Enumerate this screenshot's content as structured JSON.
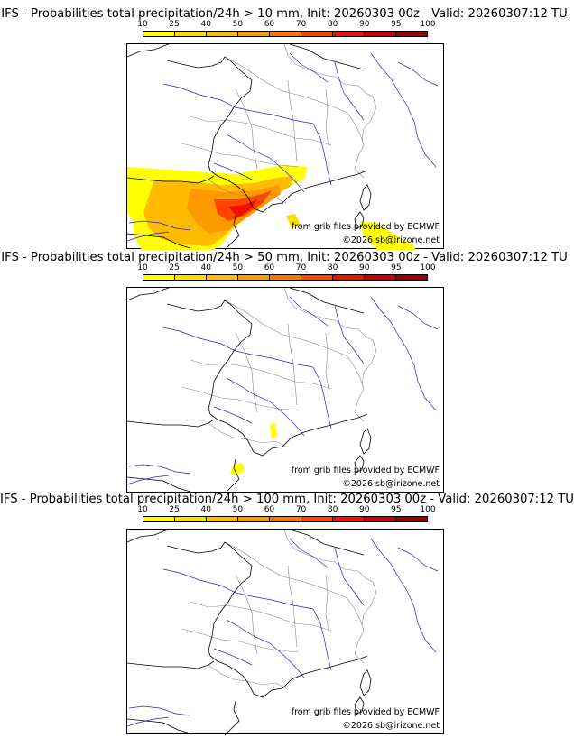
{
  "panels": [
    {
      "title": "IFS - Probabilities total precipitation/24h > 10 mm, Init: 20260303 00z - Valid: 20260307:12 TU",
      "threshold": "10 mm",
      "precip": "high"
    },
    {
      "title": "IFS - Probabilities total precipitation/24h > 50 mm, Init: 20260303 00z - Valid: 20260307:12 TU",
      "threshold": "50 mm",
      "precip": "low"
    },
    {
      "title": "IFS - Probabilities total precipitation/24h > 100 mm, Init: 20260303 00z - Valid: 20260307:12 TU",
      "threshold": "100 mm",
      "precip": "none"
    }
  ],
  "colorbar": {
    "labels": [
      "10",
      "25",
      "40",
      "50",
      "60",
      "70",
      "80",
      "90",
      "95",
      "100"
    ],
    "colors": [
      "#ffff00",
      "#ffdd00",
      "#ffbb00",
      "#ff9900",
      "#ff7700",
      "#ff4400",
      "#ee1100",
      "#cc0000",
      "#990000",
      "#660000"
    ]
  },
  "credits": {
    "source": "from grib files provided by ECMWF",
    "copyright": "©2026 sb@irizone.net"
  },
  "map_colors": {
    "coast": "#000000",
    "borders": "#888888",
    "rivers": "#2222dd"
  }
}
